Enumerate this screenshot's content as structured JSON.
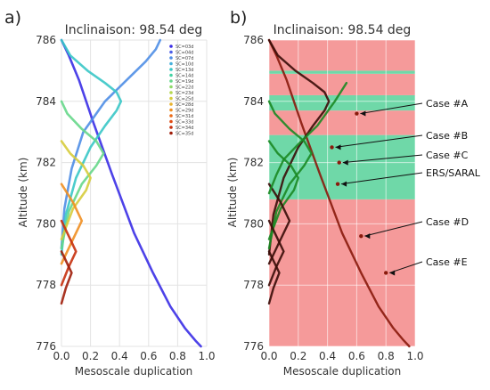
{
  "chart_data": [
    {
      "panel_letter": "a)",
      "type": "line",
      "title": "Inclinaison: 98.54 deg",
      "xlabel": "Mesoscale duplication",
      "ylabel": "Altitude (km)",
      "xlim": [
        0.0,
        1.0
      ],
      "ylim": [
        776,
        786
      ],
      "xticks": [
        "0.0",
        "0.2",
        "0.4",
        "0.6",
        "0.8",
        "1.0"
      ],
      "yticks": [
        "776",
        "778",
        "780",
        "782",
        "784",
        "786"
      ],
      "grid": true,
      "legend_position": "top-right",
      "legend": [
        "SC=03d",
        "SC=04d",
        "SC=07d",
        "SC=10d",
        "SC=13d",
        "SC=14d",
        "SC=19d",
        "SC=22d",
        "SC=23d",
        "SC=25d",
        "SC=28d",
        "SC=29d",
        "SC=31d",
        "SC=33d",
        "SC=34d",
        "SC=35d"
      ],
      "series_colors": [
        "#3a2de6",
        "#4b5ee8",
        "#4f8ee6",
        "#46b0dc",
        "#39c6c6",
        "#45d3a4",
        "#66d78a",
        "#8fda6a",
        "#b5d850",
        "#d6cc3c",
        "#e7b22e",
        "#ef8f22",
        "#ec6b18",
        "#e04a12",
        "#c6300d",
        "#a01e0a"
      ],
      "series": [
        {
          "name": "SC=03d",
          "x": [
            0.0,
            0.05,
            0.12,
            0.22,
            0.35,
            0.5,
            0.63,
            0.75,
            0.85,
            0.92,
            0.96
          ],
          "y": [
            786,
            785.5,
            784.7,
            783.3,
            781.6,
            779.7,
            778.4,
            777.3,
            776.6,
            776.2,
            776
          ]
        },
        {
          "name": "SC=07d",
          "x": [
            0.0,
            0.02,
            0.07,
            0.15,
            0.3,
            0.45,
            0.58,
            0.65,
            0.68
          ],
          "y": [
            779.2,
            780.5,
            781.8,
            783.0,
            784.0,
            784.7,
            785.3,
            785.7,
            786
          ]
        },
        {
          "name": "SC=13d",
          "x": [
            0.0,
            0.03,
            0.1,
            0.2,
            0.3,
            0.38,
            0.41,
            0.38,
            0.3,
            0.18,
            0.06,
            0.0
          ],
          "y": [
            779.0,
            780.3,
            781.5,
            782.5,
            783.2,
            783.7,
            784.0,
            784.3,
            784.6,
            785.0,
            785.5,
            786
          ]
        },
        {
          "name": "SC=19d",
          "x": [
            0.0,
            0.05,
            0.14,
            0.24,
            0.29,
            0.24,
            0.14,
            0.04,
            0.0
          ],
          "y": [
            779.2,
            780.4,
            781.3,
            781.9,
            782.3,
            782.7,
            783.1,
            783.6,
            784.0
          ]
        },
        {
          "name": "SC=25d",
          "x": [
            0.0,
            0.08,
            0.17,
            0.2,
            0.15,
            0.06,
            0.0
          ],
          "y": [
            779.5,
            780.5,
            781.1,
            781.5,
            781.9,
            782.3,
            782.7
          ]
        },
        {
          "name": "SC=29d",
          "x": [
            0.0,
            0.08,
            0.14,
            0.08,
            0.0
          ],
          "y": [
            778.7,
            779.5,
            780.1,
            780.7,
            781.3
          ]
        },
        {
          "name": "SC=34d",
          "x": [
            0.0,
            0.05,
            0.1,
            0.05,
            0.0
          ],
          "y": [
            778.0,
            778.6,
            779.1,
            779.6,
            780.1
          ]
        },
        {
          "name": "SC=35d",
          "x": [
            0.0,
            0.03,
            0.07,
            0.03,
            0.0
          ],
          "y": [
            777.4,
            777.9,
            778.4,
            778.8,
            779.1
          ]
        }
      ]
    },
    {
      "panel_letter": "b)",
      "type": "line",
      "title": "Inclinaison: 98.54 deg",
      "xlabel": "Mesoscale duplication",
      "ylabel": "Altitude (km)",
      "xlim": [
        0.0,
        1.0
      ],
      "ylim": [
        776,
        786
      ],
      "xticks": [
        "0.0",
        "0.2",
        "0.4",
        "0.6",
        "0.8",
        "1.0"
      ],
      "yticks": [
        "776",
        "778",
        "780",
        "782",
        "784",
        "786"
      ],
      "grid": true,
      "bands": [
        {
          "y0": 776.0,
          "y1": 780.8,
          "color": "#f59a9a"
        },
        {
          "y0": 780.8,
          "y1": 782.9,
          "color": "#6fd8a8"
        },
        {
          "y0": 782.9,
          "y1": 783.7,
          "color": "#f59a9a"
        },
        {
          "y0": 783.7,
          "y1": 784.2,
          "color": "#6fd8a8"
        },
        {
          "y0": 784.2,
          "y1": 784.9,
          "color": "#f59a9a"
        },
        {
          "y0": 784.9,
          "y1": 785.0,
          "color": "#6fd8a8"
        },
        {
          "y0": 785.0,
          "y1": 786.0,
          "color": "#f59a9a"
        }
      ],
      "curve_colors": {
        "selected": "#1b8a24",
        "other": "#3a0c08",
        "main": "#8a1a0c"
      },
      "series": [
        {
          "x": [
            0.0,
            0.05,
            0.12,
            0.22,
            0.35,
            0.5,
            0.63,
            0.75,
            0.85,
            0.92,
            0.96
          ],
          "y": [
            786,
            785.5,
            784.7,
            783.3,
            781.6,
            779.7,
            778.4,
            777.3,
            776.6,
            776.2,
            776
          ],
          "role": "main"
        },
        {
          "x": [
            0.0,
            0.03,
            0.1,
            0.2,
            0.3,
            0.38,
            0.41,
            0.38,
            0.3,
            0.18,
            0.06,
            0.0
          ],
          "y": [
            779.0,
            780.3,
            781.5,
            782.5,
            783.2,
            783.7,
            784.0,
            784.3,
            784.6,
            785.0,
            785.5,
            786
          ],
          "role": "other"
        },
        {
          "x": [
            0.0,
            0.05,
            0.14,
            0.24,
            0.29,
            0.24,
            0.14,
            0.04,
            0.0
          ],
          "y": [
            779.2,
            780.4,
            781.3,
            781.9,
            782.3,
            782.7,
            783.1,
            783.6,
            784.0
          ],
          "role": "selected"
        },
        {
          "x": [
            0.0,
            0.08,
            0.17,
            0.2,
            0.15,
            0.06,
            0.0
          ],
          "y": [
            779.5,
            780.5,
            781.1,
            781.5,
            781.9,
            782.3,
            782.7
          ],
          "role": "selected"
        },
        {
          "x": [
            0.0,
            0.08,
            0.14,
            0.08,
            0.0
          ],
          "y": [
            778.7,
            779.5,
            780.1,
            780.7,
            781.3
          ],
          "role": "other"
        },
        {
          "x": [
            0.0,
            0.05,
            0.1,
            0.05,
            0.0
          ],
          "y": [
            778.0,
            778.6,
            779.1,
            779.6,
            780.1
          ],
          "role": "other"
        },
        {
          "x": [
            0.0,
            0.03,
            0.07,
            0.03,
            0.0
          ],
          "y": [
            777.4,
            777.9,
            778.4,
            778.8,
            779.1
          ],
          "role": "other"
        },
        {
          "x": [
            0.0,
            0.05,
            0.1,
            0.2,
            0.33,
            0.45,
            0.53
          ],
          "y": [
            781.0,
            781.6,
            782.1,
            782.6,
            783.2,
            784.0,
            784.6
          ],
          "role": "selected"
        }
      ],
      "annotations": [
        {
          "label": "Case #A",
          "x": 0.6,
          "y": 783.6
        },
        {
          "label": "Case #B",
          "x": 0.43,
          "y": 782.5
        },
        {
          "label": "Case #C",
          "x": 0.48,
          "y": 782.0
        },
        {
          "label": "ERS/SARAL",
          "x": 0.47,
          "y": 781.3
        },
        {
          "label": "Case #D",
          "x": 0.63,
          "y": 779.6
        },
        {
          "label": "Case #E",
          "x": 0.8,
          "y": 778.4
        }
      ]
    }
  ]
}
